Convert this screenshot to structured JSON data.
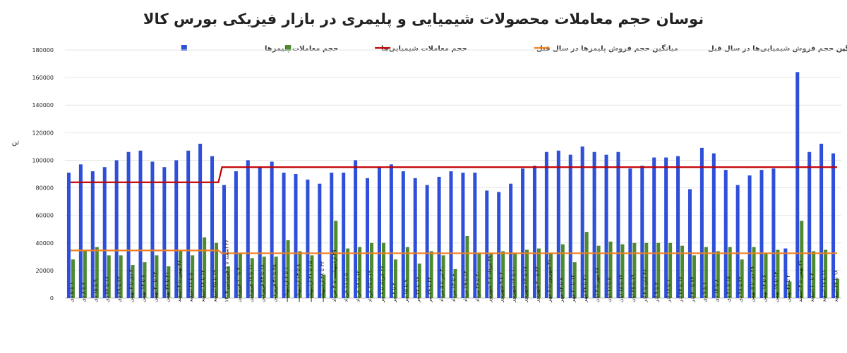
{
  "chart_data": {
    "type": "bar",
    "title": "نوسان حجم معاملات محصولات شیمیایی و پلیمری در بازار فیزیکی بورس کالا",
    "ylabel": "تن",
    "xlabel": "",
    "ylim": [
      0,
      180000
    ],
    "yticks": [
      0,
      20000,
      40000,
      60000,
      80000,
      100000,
      120000,
      140000,
      160000,
      180000
    ],
    "ytick_labels": [
      "0",
      "20000",
      "40000",
      "60000",
      "80000",
      "100000",
      "120000",
      "140000",
      "160000",
      "180000"
    ],
    "grid": "horizontal",
    "legend_position": "top",
    "categories": [
      "۱ تا ۵ دی",
      "۲ تا ۸ دی",
      "۹ تا ۱۵ دی",
      "۱۶ تا ۲۲ دی",
      "۲۳ تا ۲۹ دی",
      "۳۰ دی تا ۶ بهمن",
      "۷ تا ۱۳ بهمن",
      "۱۴ تا ۲۰ بهمن",
      "۲۱ تا ۲۷ بهمن",
      "۲۸ بهمن تا ۴ اسفند",
      "۵ تا ۱۱ اسفند",
      "۱۲ تا ۱۸ اسفند",
      "۱۹ تا ۲۵ اسفند",
      "۲۶ اسفند تا ۱ فروردین ۱۴۰۳",
      "۴ تا ۱۰ فروردین",
      "۱۱ تا ۱۷ فروردین",
      "۱۸ تا ۲۴ فروردین",
      "۲۵ تا ۳۱ فروردین",
      "۱ تا ۷ اردیبهشت",
      "۸ تا ۱۴ اردیبهشت",
      "۱۵ تا ۲۱ اردیبهشت",
      "۲۲ تا ۲۸ اردیبهشت",
      "۲۹ اردیبهشت تا ۴ خرداد",
      "۵ تا ۱۱ خرداد",
      "۱۲ تا ۱۸ خرداد",
      "۱۹ تا ۲۵ خرداد",
      "۲۶ خرداد تا ۱ تیر",
      "۲ تا ۸ تیر",
      "۹ تا ۱۵ تیر",
      "۱۶ تا ۲۲ تیر",
      "۲۳ تا ۲۹ تیر",
      "۳۰ تیر تا ۵ مرداد",
      "۶ تا ۱۲ مرداد",
      "۱۳ تا ۱۹ مرداد",
      "۲۰ تا ۲۶ مرداد",
      "۲۷ مرداد تا ۲ شهریور",
      "۳ تا ۹ شهریور",
      "۱۰ تا ۱۶ شهریور",
      "۱۷ تا ۲۳ شهریور",
      "۲۴ تا ۳۰ شهریور",
      "۳۱ شهریور تا ۶ مهر",
      "۷ تا ۱۳ مهر",
      "۱۴ تا ۲۰ مهر",
      "۲۱ تا ۲۷ مهر",
      "۲۸ مهر تا ۴ آبان",
      "۵ تا ۱۱ آبان",
      "۱۲ تا ۱۸ آبان",
      "۱۹ تا ۲۵ آبان",
      "۲۶ آبان تا ۲ آذر",
      "۳ تا ۹ آذر",
      "۱۰ تا ۱۶ آذر",
      "۱۷ تا ۲۳ آذر",
      "۲۴ تا ۳۰ آذر",
      "۱ تا ۷ دی",
      "۸ تا ۱۴ دی",
      "۱۵ تا ۲۱ دی",
      "۲۲ تا ۲۸ دی",
      "۲۹ دی تا ۵ بهمن",
      "۶ تا ۱۲ بهمن",
      "۱۳ تا ۱۹ بهمن",
      "۲۰ تا ۲۶ بهمن",
      "۲۷ بهمن تا ۳ اسفند",
      "۴ تا ۱۰ اسفند",
      "۱۱ تا ۱۷ اسفند",
      "۱۸ تا ۲۴ اسفند"
    ],
    "series": [
      {
        "name": "حجم معاملات پلیمرها",
        "kind": "bar",
        "color": "#2E4FD9",
        "values": [
          91000,
          97000,
          92000,
          95000,
          100000,
          106000,
          107000,
          99000,
          95000,
          100000,
          107000,
          112000,
          103000,
          82000,
          92000,
          100000,
          95000,
          99000,
          91000,
          90000,
          86000,
          83000,
          91000,
          91000,
          100000,
          87000,
          95000,
          97000,
          92000,
          87000,
          82000,
          88000,
          92000,
          91000,
          91000,
          78000,
          77000,
          83000,
          94000,
          96000,
          106000,
          107000,
          104000,
          110000,
          106000,
          104000,
          106000,
          94000,
          96000,
          102000,
          102000,
          103000,
          79000,
          109000,
          105000,
          93000,
          82000,
          89000,
          93000,
          94000,
          36000,
          164000,
          106000,
          112000,
          105000
        ]
      },
      {
        "name": "حجم معاملات شیمیایی‌ها",
        "kind": "bar",
        "color": "#4E8A2E",
        "values": [
          28000,
          35000,
          37000,
          31000,
          31000,
          24000,
          26000,
          31000,
          23000,
          34000,
          31000,
          44000,
          40000,
          23000,
          33000,
          29000,
          30000,
          30000,
          42000,
          34000,
          31000,
          17000,
          56000,
          36000,
          37000,
          40000,
          40000,
          28000,
          37000,
          25000,
          34000,
          31000,
          21000,
          45000,
          33000,
          32000,
          34000,
          33000,
          35000,
          36000,
          32000,
          39000,
          26000,
          48000,
          38000,
          41000,
          39000,
          40000,
          40000,
          40000,
          40000,
          38000,
          31000,
          37000,
          34000,
          37000,
          28000,
          37000,
          33000,
          35000,
          12000,
          56000,
          34000,
          35000,
          14000
        ]
      },
      {
        "name": "میانگین حجم فروش پلیمرها در سال قبل",
        "kind": "line",
        "color": "#C00000",
        "segments": [
          {
            "from": 0,
            "to": 12,
            "value": 84000
          },
          {
            "from": 13,
            "to": 64,
            "value": 95000
          }
        ]
      },
      {
        "name": "میانگین حجم فروش شیمیایی‌ها در سال قبل",
        "kind": "line",
        "color": "#F07F1E",
        "segments": [
          {
            "from": 0,
            "to": 12,
            "value": 34500
          },
          {
            "from": 13,
            "to": 64,
            "value": 32500
          }
        ]
      }
    ]
  }
}
